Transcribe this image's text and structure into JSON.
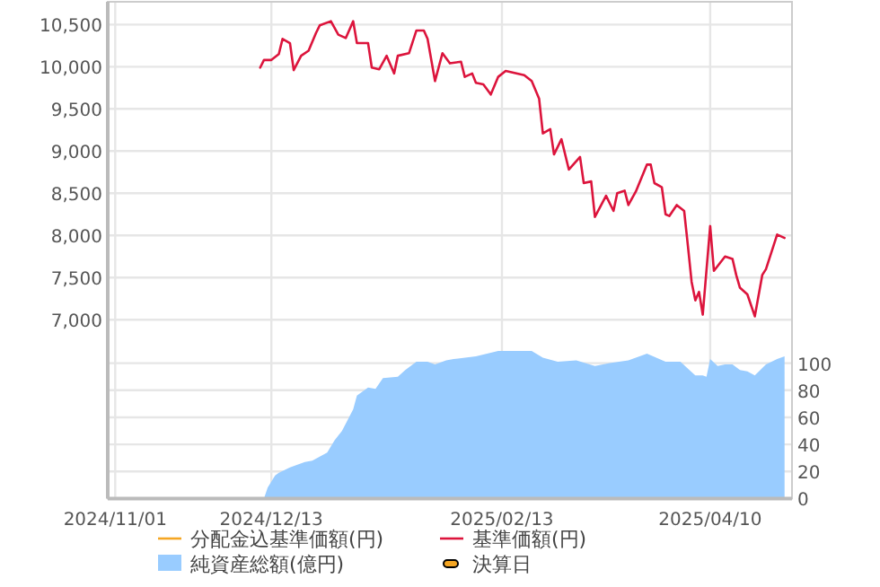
{
  "chart_data": {
    "type": "line",
    "xlim": [
      "2024-10-30",
      "2025-05-02"
    ],
    "xticks": [
      {
        "value": "2024-11-01",
        "label": "2024/11/01"
      },
      {
        "value": "2024-12-13",
        "label": "2024/12/13"
      },
      {
        "value": "2025-02-13",
        "label": "2025/02/13"
      },
      {
        "value": "2025-04-10",
        "label": "2025/04/10"
      }
    ],
    "ylim": [
      4880,
      10770
    ],
    "yticks": [
      {
        "value": 7000,
        "label": "7,000"
      },
      {
        "value": 7500,
        "label": "7,500"
      },
      {
        "value": 8000,
        "label": "8,000"
      },
      {
        "value": 8500,
        "label": "8,500"
      },
      {
        "value": 9000,
        "label": "9,000"
      },
      {
        "value": 9500,
        "label": "9,500"
      },
      {
        "value": 10000,
        "label": "10,000"
      },
      {
        "value": 10500,
        "label": "10,500"
      }
    ],
    "y2lim": [
      0,
      367
    ],
    "y2ticks": [
      0,
      20,
      40,
      60,
      80,
      100
    ],
    "grid": true,
    "legend": "bottom",
    "series": [
      {
        "name": "分配金込基準価額(円)",
        "color": "#f5a623",
        "type": "line"
      },
      {
        "name": "基準価額(円)",
        "color": "#dc143c",
        "x": [
          "2024-12-10",
          "2024-12-11",
          "2024-12-13",
          "2024-12-15",
          "2024-12-16",
          "2024-12-18",
          "2024-12-19",
          "2024-12-21",
          "2024-12-23",
          "2024-12-25",
          "2024-12-26",
          "2024-12-29",
          "2024-12-31",
          "2025-01-02",
          "2025-01-04",
          "2025-01-05",
          "2025-01-08",
          "2025-01-09",
          "2025-01-11",
          "2025-01-13",
          "2025-01-15",
          "2025-01-16",
          "2025-01-19",
          "2025-01-21",
          "2025-01-23",
          "2025-01-24",
          "2025-01-26",
          "2025-01-28",
          "2025-01-30",
          "2025-02-02",
          "2025-02-03",
          "2025-02-05",
          "2025-02-06",
          "2025-02-08",
          "2025-02-10",
          "2025-02-12",
          "2025-02-14",
          "2025-02-19",
          "2025-02-21",
          "2025-02-23",
          "2025-02-24",
          "2025-02-26",
          "2025-02-27",
          "2025-03-01",
          "2025-03-03",
          "2025-03-06",
          "2025-03-07",
          "2025-03-09",
          "2025-03-10",
          "2025-03-13",
          "2025-03-15",
          "2025-03-16",
          "2025-03-18",
          "2025-03-19",
          "2025-03-21",
          "2025-03-24",
          "2025-03-25",
          "2025-03-26",
          "2025-03-28",
          "2025-03-29",
          "2025-03-30",
          "2025-04-01",
          "2025-04-03",
          "2025-04-04",
          "2025-04-05",
          "2025-04-06",
          "2025-04-07",
          "2025-04-08",
          "2025-04-10",
          "2025-04-11",
          "2025-04-14",
          "2025-04-16",
          "2025-04-17",
          "2025-04-18",
          "2025-04-20",
          "2025-04-22",
          "2025-04-24",
          "2025-04-25",
          "2025-04-28",
          "2025-04-30"
        ],
        "values": [
          9990,
          10080,
          10080,
          10150,
          10330,
          10280,
          9960,
          10130,
          10190,
          10400,
          10490,
          10540,
          10380,
          10340,
          10540,
          10280,
          10280,
          9990,
          9970,
          10130,
          9920,
          10130,
          10160,
          10430,
          10430,
          10330,
          9830,
          10160,
          10040,
          10060,
          9880,
          9920,
          9810,
          9790,
          9670,
          9880,
          9950,
          9900,
          9830,
          9620,
          9210,
          9260,
          8960,
          9140,
          8780,
          8930,
          8620,
          8640,
          8220,
          8470,
          8290,
          8500,
          8530,
          8360,
          8520,
          8840,
          8840,
          8620,
          8570,
          8250,
          8230,
          8360,
          8290,
          7880,
          7450,
          7230,
          7330,
          7060,
          8110,
          7580,
          7750,
          7720,
          7530,
          7380,
          7300,
          7040,
          7530,
          7600,
          8010,
          7970
        ]
      },
      {
        "name": "純資産総額(億円)",
        "color": "#99ccff",
        "type": "area",
        "axis": "y2",
        "x": [
          "2024-12-11",
          "2024-12-12",
          "2024-12-14",
          "2024-12-15",
          "2024-12-18",
          "2024-12-19",
          "2024-12-22",
          "2024-12-24",
          "2024-12-26",
          "2024-12-28",
          "2024-12-30",
          "2025-01-01",
          "2025-01-04",
          "2025-01-05",
          "2025-01-08",
          "2025-01-10",
          "2025-01-12",
          "2025-01-16",
          "2025-01-18",
          "2025-01-21",
          "2025-01-24",
          "2025-01-26",
          "2025-01-29",
          "2025-01-31",
          "2025-02-06",
          "2025-02-12",
          "2025-02-21",
          "2025-02-24",
          "2025-02-28",
          "2025-03-05",
          "2025-03-10",
          "2025-03-14",
          "2025-03-19",
          "2025-03-24",
          "2025-03-29",
          "2025-04-02",
          "2025-04-06",
          "2025-04-08",
          "2025-04-09",
          "2025-04-10",
          "2025-04-12",
          "2025-04-14",
          "2025-04-16",
          "2025-04-18",
          "2025-04-20",
          "2025-04-22",
          "2025-04-25",
          "2025-04-28",
          "2025-04-30"
        ],
        "values": [
          0,
          8,
          17,
          19,
          23,
          24,
          27,
          28,
          31,
          34,
          43,
          50,
          66,
          76,
          82,
          81,
          89,
          90,
          95,
          101,
          101,
          99,
          102,
          103,
          105,
          109,
          109,
          104,
          101,
          102,
          98,
          100,
          102,
          107,
          101,
          101,
          91,
          91,
          90,
          103,
          98,
          99,
          99,
          95,
          94,
          91,
          99,
          103,
          105
        ]
      },
      {
        "name": "決算日",
        "color": "#f5a623",
        "type": "scatter"
      }
    ]
  }
}
